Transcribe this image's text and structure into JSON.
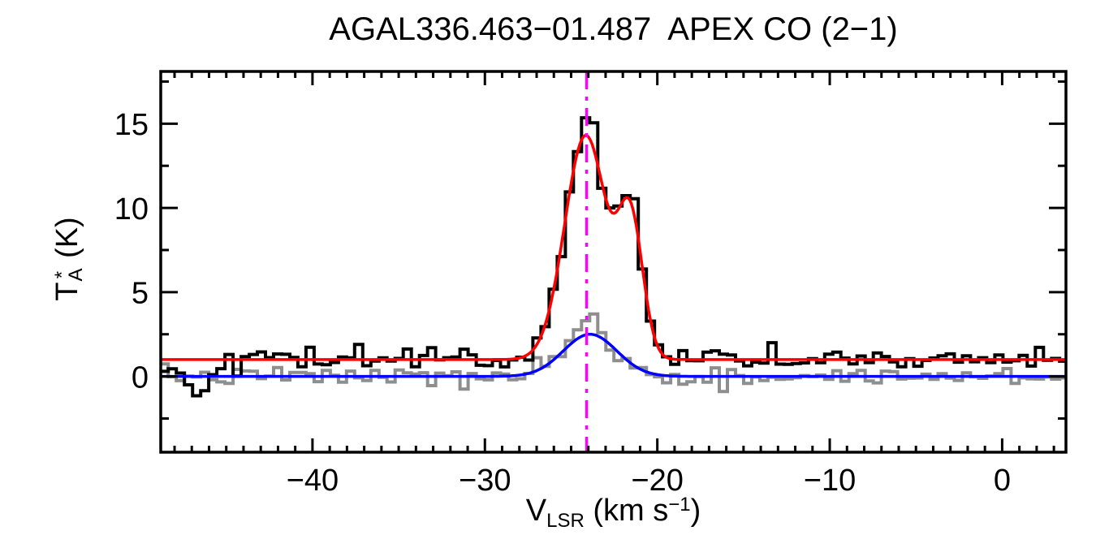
{
  "title": "AGAL336.463−01.487  APEX CO (2−1)",
  "colors": {
    "observed_spectrum": "#000000",
    "reference_spectrum": "#8e8e8e",
    "fit_main": "#ff0000",
    "fit_reference": "#0000ff",
    "velocity_marker": "#ff00ff",
    "axes": "#000000",
    "background": "#ffffff"
  },
  "chart_data": {
    "type": "line",
    "title": "AGAL336.463−01.487  APEX CO (2−1)",
    "xlabel_parts": {
      "main": "V",
      "sub": "LSR",
      "mid": " (km s",
      "sup": "−1",
      "end": ")"
    },
    "ylabel_parts": {
      "main": "T",
      "sup": "*",
      "sub": "A",
      "unit": " (K)"
    },
    "xlabel_plain": "VLSR (km s-1)",
    "ylabel_plain": "TA* (K)",
    "xlim": [
      -48.8,
      3.7
    ],
    "ylim": [
      -4.5,
      18.1
    ],
    "grid": false,
    "legend": "none",
    "x_major_ticks": [
      {
        "v": -40,
        "label": "−40"
      },
      {
        "v": -30,
        "label": "−30"
      },
      {
        "v": -20,
        "label": "−20"
      },
      {
        "v": -10,
        "label": "−10"
      },
      {
        "v": 0,
        "label": "0"
      }
    ],
    "y_major_ticks": [
      {
        "v": 0,
        "label": "0"
      },
      {
        "v": 5,
        "label": "5"
      },
      {
        "v": 10,
        "label": "10"
      },
      {
        "v": 15,
        "label": "15"
      }
    ],
    "x_minor_step": 1,
    "y_minor_step": 2.5,
    "channel_width_kms": 0.47,
    "v_start": -48.6,
    "n_channels": 112,
    "series": [
      {
        "name": "reference-spectrum",
        "style": "histogram",
        "color": "#8e8e8e",
        "baseline": 0.0,
        "gaussians": [
          {
            "amp": 2.6,
            "center": -23.95,
            "sigma": 1.45
          }
        ],
        "noise_sigma": 0.27,
        "noise_seed": 7,
        "overrides": [
          {
            "v": -24.3,
            "value": 3.3
          },
          {
            "v": -23.85,
            "value": 3.7
          },
          {
            "v": -23.4,
            "value": 2.6
          },
          {
            "v": -16.3,
            "value": -0.9
          },
          {
            "v": -31.0,
            "value": -0.75
          }
        ]
      },
      {
        "name": "observed-spectrum",
        "style": "histogram",
        "color": "#000000",
        "baseline": 1.0,
        "gaussians": [
          {
            "amp": 13.3,
            "center": -24.15,
            "sigma": 1.22
          },
          {
            "amp": 8.0,
            "center": -21.55,
            "sigma": 0.72
          }
        ],
        "noise_sigma": 0.3,
        "noise_seed": 42,
        "overrides": [
          {
            "v": -48.55,
            "value": 0.3
          },
          {
            "v": -48.1,
            "value": 0.45
          },
          {
            "v": -47.6,
            "value": 0.2
          },
          {
            "v": -47.15,
            "value": -0.5
          },
          {
            "v": -46.7,
            "value": -1.15
          },
          {
            "v": -46.25,
            "value": -0.85
          },
          {
            "v": -45.8,
            "value": 0.1
          },
          {
            "v": -44.9,
            "value": 1.3
          },
          {
            "v": -37.3,
            "value": 1.9
          },
          {
            "v": -33.0,
            "value": 1.7
          },
          {
            "v": -24.25,
            "value": 15.35
          },
          {
            "v": -23.8,
            "value": 15.05
          },
          {
            "v": -21.45,
            "value": 10.55
          },
          {
            "v": -13.4,
            "value": 2.0
          }
        ]
      },
      {
        "name": "gaussian-fit-reference",
        "style": "smooth",
        "color": "#0000ff",
        "baseline": 0.0,
        "gaussians": [
          {
            "amp": 2.5,
            "center": -23.9,
            "sigma": 1.55
          }
        ]
      },
      {
        "name": "gaussian-fit-main",
        "style": "smooth",
        "color": "#ff0000",
        "baseline": 1.0,
        "gaussians": [
          {
            "amp": 13.3,
            "center": -24.15,
            "sigma": 1.22
          },
          {
            "amp": 8.0,
            "center": -21.55,
            "sigma": 0.72
          }
        ]
      }
    ],
    "vline": {
      "v": -24.1,
      "color": "#ff00ff",
      "name": "systemic-velocity-marker"
    },
    "key_values": {
      "observed_peak_K": 15.3,
      "observed_peak_v_kms": -24.2,
      "secondary_peak_K": 10.4,
      "secondary_peak_v_kms": -21.5,
      "fit_peak_K": 14.3,
      "fit_baseline_K": 1.0,
      "reference_fit_peak_K": 2.5,
      "reference_baseline_K": 0.0,
      "marker_velocity_kms": -24.1,
      "absorption_dip_K": -1.2,
      "absorption_dip_v_kms": -46.8
    }
  }
}
